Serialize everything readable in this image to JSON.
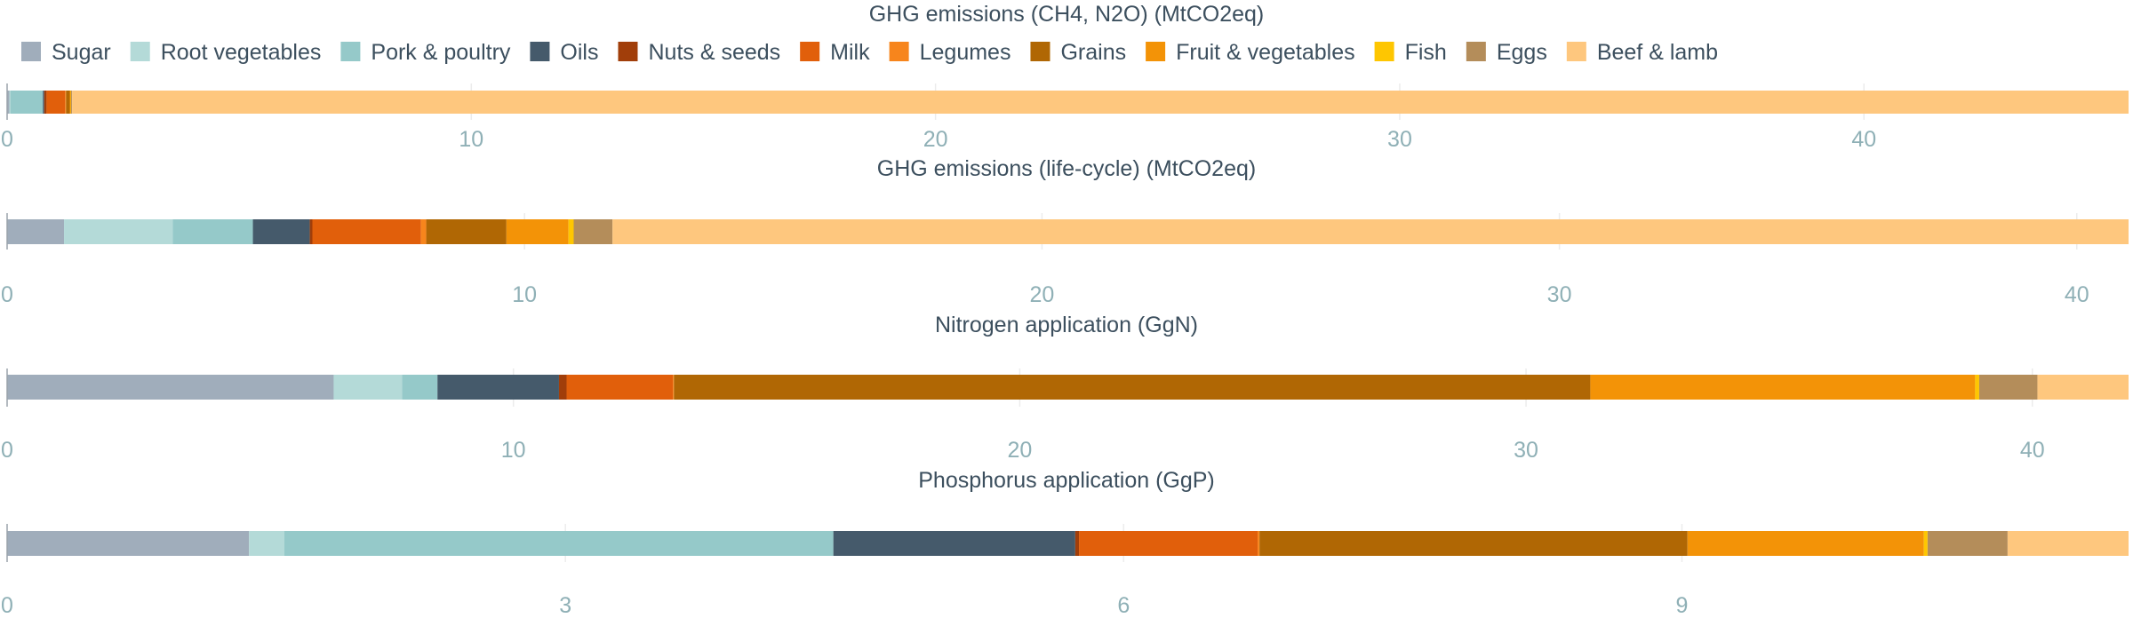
{
  "legend": {
    "placement": "top-left",
    "items": [
      {
        "name": "Sugar",
        "color": "#a0adbb"
      },
      {
        "name": "Root vegetables",
        "color": "#b4dad8"
      },
      {
        "name": "Pork & poultry",
        "color": "#95c9c9"
      },
      {
        "name": "Oils",
        "color": "#455a6b"
      },
      {
        "name": "Nuts & seeds",
        "color": "#a13e0a"
      },
      {
        "name": "Milk",
        "color": "#e15f0b"
      },
      {
        "name": "Legumes",
        "color": "#f7851c"
      },
      {
        "name": "Grains",
        "color": "#b06704"
      },
      {
        "name": "Fruit & vegetables",
        "color": "#f39307"
      },
      {
        "name": "Fish",
        "color": "#fec601"
      },
      {
        "name": "Eggs",
        "color": "#b48d5a"
      },
      {
        "name": "Beef & lamb",
        "color": "#fec77e"
      }
    ]
  },
  "chart_data": [
    {
      "type": "bar",
      "orientation": "horizontal",
      "stacked": true,
      "title": "GHG emissions (CH4, N2O) (MtCO2eq)",
      "xlim": [
        0,
        45.7
      ],
      "xticks": [
        0,
        10,
        20,
        30,
        40
      ],
      "grid": true,
      "series": [
        {
          "name": "Sugar",
          "values": [
            0.05
          ]
        },
        {
          "name": "Root vegetables",
          "values": [
            0.02
          ]
        },
        {
          "name": "Pork & poultry",
          "values": [
            0.7
          ]
        },
        {
          "name": "Oils",
          "values": [
            0.03
          ]
        },
        {
          "name": "Nuts & seeds",
          "values": [
            0.05
          ]
        },
        {
          "name": "Milk",
          "values": [
            0.4
          ]
        },
        {
          "name": "Legumes",
          "values": [
            0.02
          ]
        },
        {
          "name": "Grains",
          "values": [
            0.08
          ]
        },
        {
          "name": "Fruit & vegetables",
          "values": [
            0.02
          ]
        },
        {
          "name": "Fish",
          "values": [
            0.01
          ]
        },
        {
          "name": "Eggs",
          "values": [
            0.02
          ]
        },
        {
          "name": "Beef & lamb",
          "values": [
            44.3
          ]
        }
      ]
    },
    {
      "type": "bar",
      "orientation": "horizontal",
      "stacked": true,
      "title": "GHG emissions (life-cycle) (MtCO2eq)",
      "xlim": [
        0,
        41
      ],
      "xticks": [
        0,
        10,
        20,
        30,
        40
      ],
      "grid": true,
      "series": [
        {
          "name": "Sugar",
          "values": [
            1.1
          ]
        },
        {
          "name": "Root vegetables",
          "values": [
            2.1
          ]
        },
        {
          "name": "Pork & poultry",
          "values": [
            1.55
          ]
        },
        {
          "name": "Oils",
          "values": [
            1.1
          ]
        },
        {
          "name": "Nuts & seeds",
          "values": [
            0.05
          ]
        },
        {
          "name": "Milk",
          "values": [
            2.1
          ]
        },
        {
          "name": "Legumes",
          "values": [
            0.1
          ]
        },
        {
          "name": "Grains",
          "values": [
            1.55
          ]
        },
        {
          "name": "Fruit & vegetables",
          "values": [
            1.2
          ]
        },
        {
          "name": "Fish",
          "values": [
            0.1
          ]
        },
        {
          "name": "Eggs",
          "values": [
            0.75
          ]
        },
        {
          "name": "Beef & lamb",
          "values": [
            29.3
          ]
        }
      ]
    },
    {
      "type": "bar",
      "orientation": "horizontal",
      "stacked": true,
      "title": "Nitrogen application (GgN)",
      "xlim": [
        0,
        41.9
      ],
      "xticks": [
        0,
        10,
        20,
        30,
        40
      ],
      "grid": true,
      "series": [
        {
          "name": "Sugar",
          "values": [
            6.45
          ]
        },
        {
          "name": "Root vegetables",
          "values": [
            1.35
          ]
        },
        {
          "name": "Pork & poultry",
          "values": [
            0.7
          ]
        },
        {
          "name": "Oils",
          "values": [
            2.4
          ]
        },
        {
          "name": "Nuts & seeds",
          "values": [
            0.15
          ]
        },
        {
          "name": "Milk",
          "values": [
            2.1
          ]
        },
        {
          "name": "Legumes",
          "values": [
            0.02
          ]
        },
        {
          "name": "Grains",
          "values": [
            18.1
          ]
        },
        {
          "name": "Fruit & vegetables",
          "values": [
            7.6
          ]
        },
        {
          "name": "Fish",
          "values": [
            0.08
          ]
        },
        {
          "name": "Eggs",
          "values": [
            1.15
          ]
        },
        {
          "name": "Beef & lamb",
          "values": [
            1.8
          ]
        }
      ]
    },
    {
      "type": "bar",
      "orientation": "horizontal",
      "stacked": true,
      "title": "Phosphorus application (GgP)",
      "xlim": [
        0,
        11.4
      ],
      "xticks": [
        0,
        3,
        6,
        9
      ],
      "grid": true,
      "series": [
        {
          "name": "Sugar",
          "values": [
            1.3
          ]
        },
        {
          "name": "Root vegetables",
          "values": [
            0.19
          ]
        },
        {
          "name": "Pork & poultry",
          "values": [
            2.95
          ]
        },
        {
          "name": "Oils",
          "values": [
            1.3
          ]
        },
        {
          "name": "Nuts & seeds",
          "values": [
            0.02
          ]
        },
        {
          "name": "Milk",
          "values": [
            0.96
          ]
        },
        {
          "name": "Legumes",
          "values": [
            0.01
          ]
        },
        {
          "name": "Grains",
          "values": [
            2.3
          ]
        },
        {
          "name": "Fruit & vegetables",
          "values": [
            1.27
          ]
        },
        {
          "name": "Fish",
          "values": [
            0.02
          ]
        },
        {
          "name": "Eggs",
          "values": [
            0.43
          ]
        },
        {
          "name": "Beef & lamb",
          "values": [
            0.65
          ]
        }
      ]
    }
  ]
}
